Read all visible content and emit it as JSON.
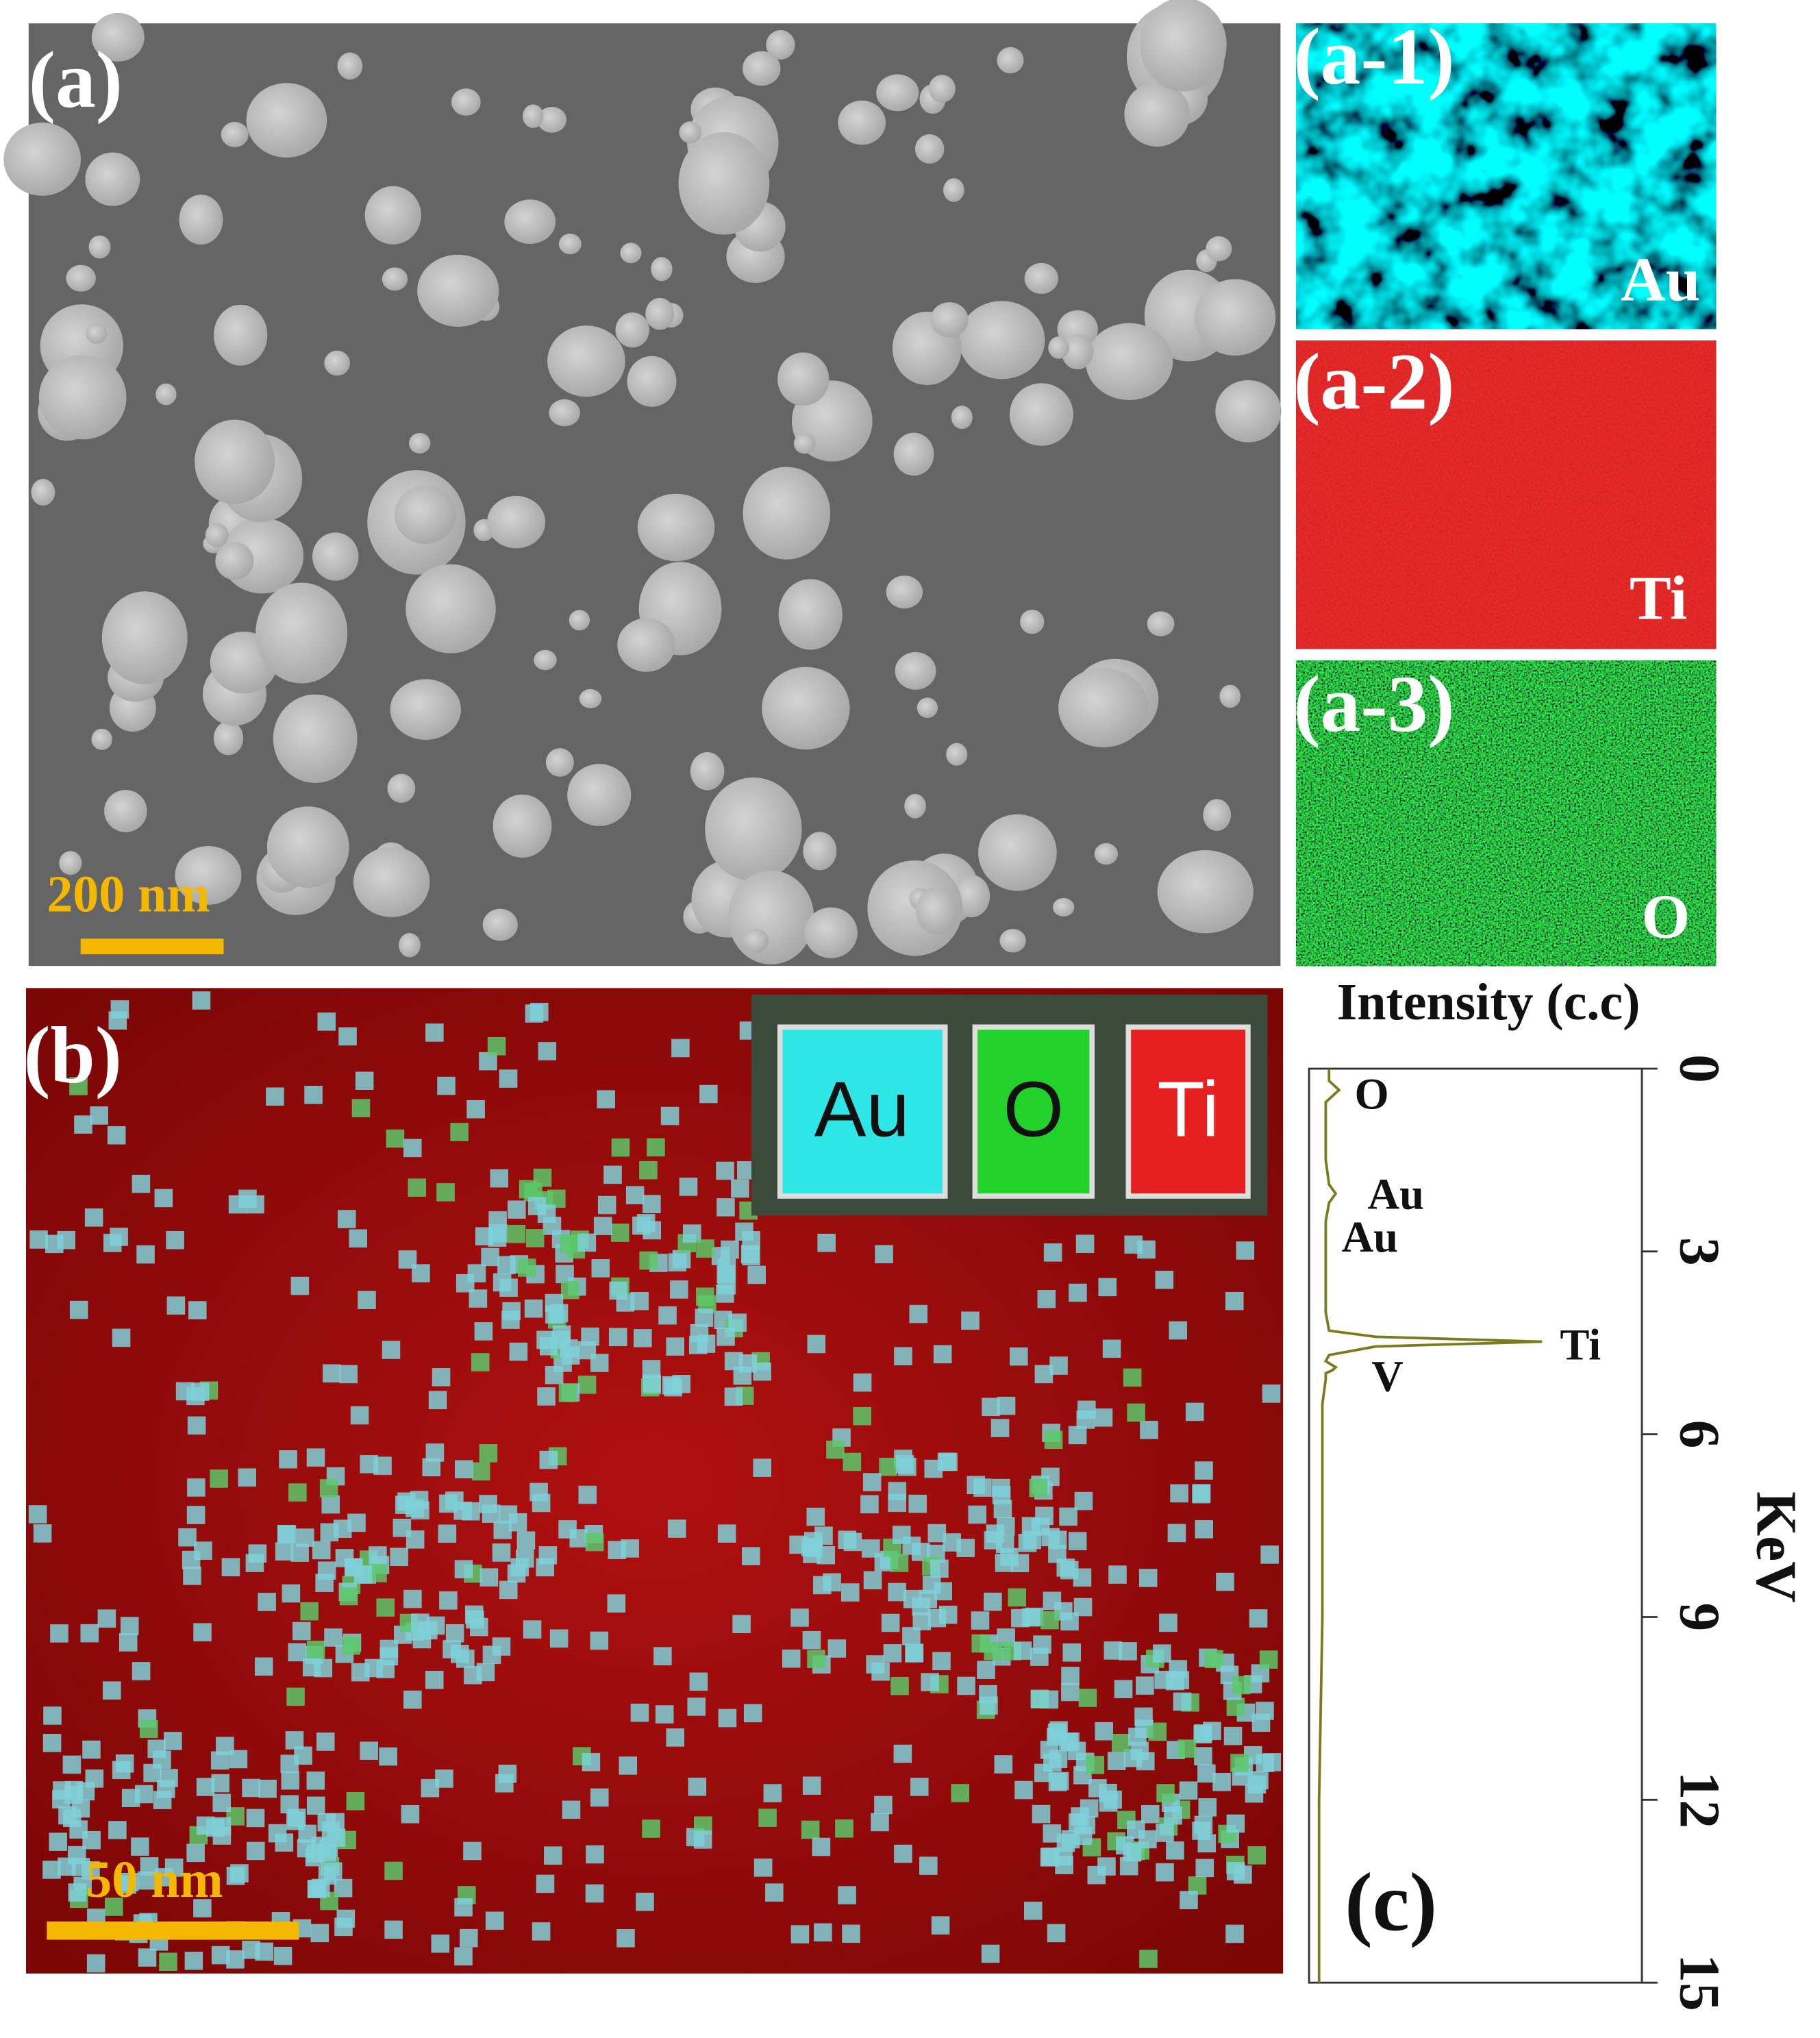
{
  "panels": {
    "a": {
      "label": "(a)",
      "scale_bar": "200 nm"
    },
    "a1": {
      "label": "(a-1)",
      "element": "Au"
    },
    "a2": {
      "label": "(a-2)",
      "element": "Ti"
    },
    "a3": {
      "label": "(a-3)",
      "element": "O"
    },
    "b": {
      "label": "(b)",
      "scale_bar": "50 nm",
      "legend": [
        "Au",
        "O",
        "Ti"
      ]
    }
  },
  "chart_data": {
    "type": "line",
    "label": "(c)",
    "y_label": "Intensity (c.c)",
    "x_label": "KeV",
    "x": [
      0,
      0.2,
      0.35,
      0.45,
      0.55,
      0.8,
      1.5,
      1.9,
      2.05,
      2.2,
      2.5,
      3,
      4,
      4.3,
      4.4,
      4.48,
      4.56,
      4.7,
      4.8,
      4.9,
      4.95,
      5.0,
      5.1,
      5.5,
      7,
      9,
      12,
      15
    ],
    "series": [
      {
        "color": "#7a7a1e",
        "values": [
          6,
          6,
          9,
          7,
          5,
          5,
          5,
          6,
          8,
          6,
          5,
          5,
          5,
          6,
          20,
          70,
          20,
          6,
          5,
          8,
          7,
          5,
          5,
          4,
          4,
          4,
          3,
          3
        ]
      }
    ],
    "xlim": [
      0,
      15
    ],
    "xticks": [
      0,
      3,
      6,
      9,
      12,
      15
    ],
    "ylim": [
      0,
      100
    ],
    "annotations": [
      "O",
      "Au",
      "Au",
      "Ti",
      "V"
    ]
  }
}
